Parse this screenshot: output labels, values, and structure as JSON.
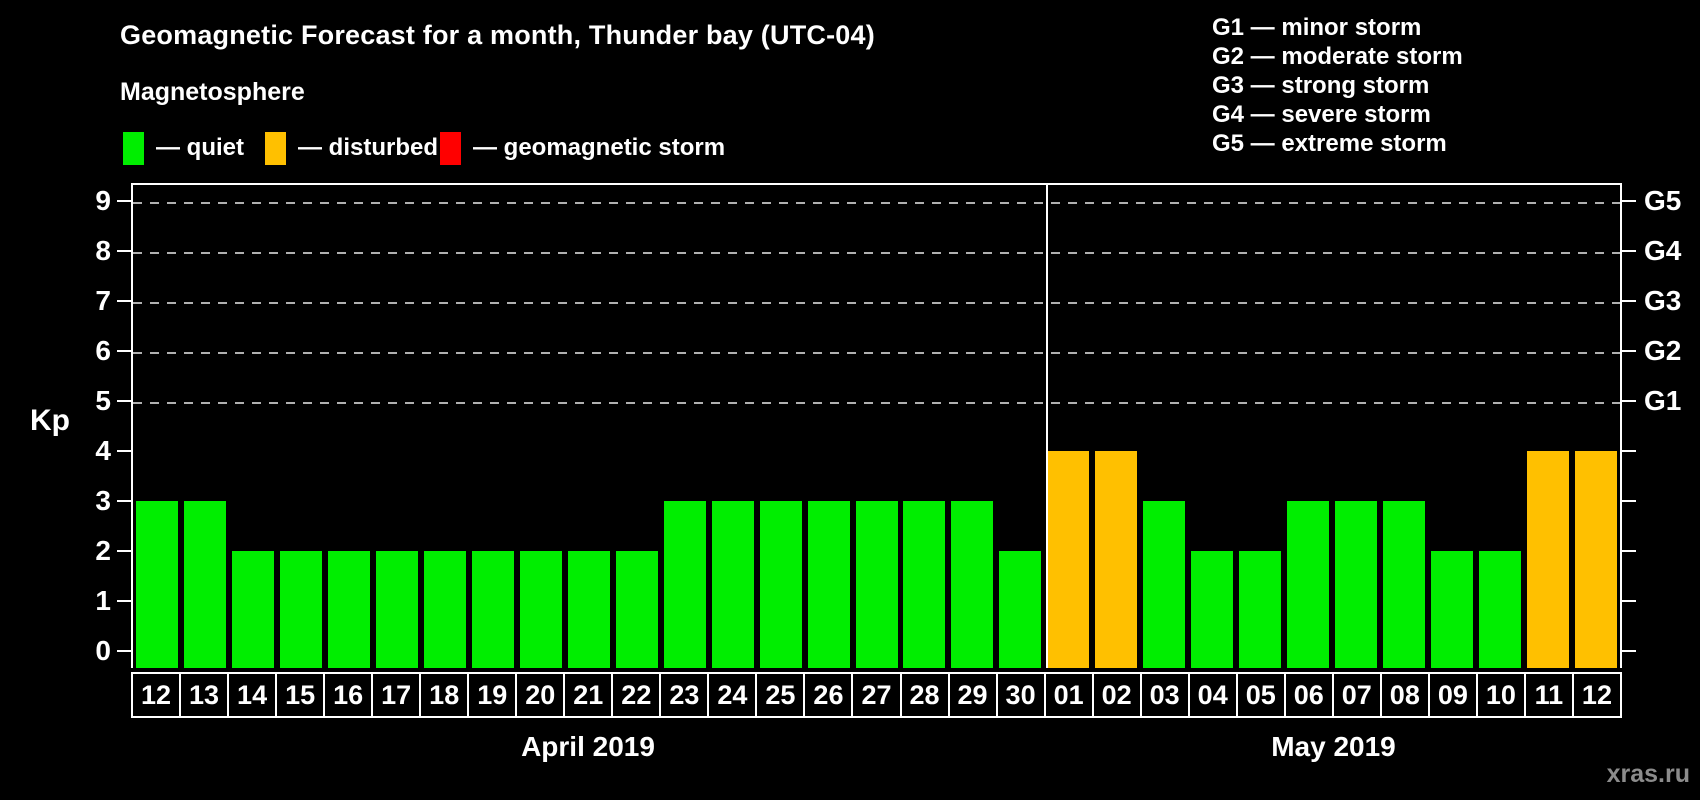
{
  "title": "Geomagnetic Forecast for a month, Thunder bay (UTC-04)",
  "subtitle": "Magnetosphere",
  "watermark": "xras.ru",
  "colors": {
    "quiet": "#00ee00",
    "disturbed": "#ffc000",
    "storm": "#ff0000",
    "axis": "#ffffff",
    "gridline": "#b0b0b0",
    "background": "#000000",
    "watermark": "#8c8c8c"
  },
  "legend": {
    "items": [
      {
        "state": "quiet",
        "label": "— quiet"
      },
      {
        "state": "disturbed",
        "label": "— disturbed"
      },
      {
        "state": "storm",
        "label": "— geomagnetic storm"
      }
    ]
  },
  "g_scale_legend": [
    "G1 — minor storm",
    "G2 — moderate storm",
    "G3 — strong storm",
    "G4 — severe storm",
    "G5 — extreme storm"
  ],
  "chart_data": {
    "type": "bar",
    "title": "Geomagnetic Forecast for a month, Thunder bay (UTC-04)",
    "ylabel": "Kp",
    "ylim": [
      0,
      9
    ],
    "yticks": [
      0,
      1,
      2,
      3,
      4,
      5,
      6,
      7,
      8,
      9
    ],
    "gridline_levels": [
      5,
      6,
      7,
      8,
      9
    ],
    "grid": "dashed horizontal at Kp 5-9 only",
    "legend_position": "top",
    "right_axis": [
      {
        "kp": 9,
        "label": "G5"
      },
      {
        "kp": 8,
        "label": "G4"
      },
      {
        "kp": 7,
        "label": "G3"
      },
      {
        "kp": 6,
        "label": "G2"
      },
      {
        "kp": 5,
        "label": "G1"
      }
    ],
    "months": [
      {
        "label": "April 2019",
        "days": 19
      },
      {
        "label": "May 2019",
        "days": 12
      }
    ],
    "series": [
      {
        "month": "April 2019",
        "day": "12",
        "kp": 3,
        "state": "quiet"
      },
      {
        "month": "April 2019",
        "day": "13",
        "kp": 3,
        "state": "quiet"
      },
      {
        "month": "April 2019",
        "day": "14",
        "kp": 2,
        "state": "quiet"
      },
      {
        "month": "April 2019",
        "day": "15",
        "kp": 2,
        "state": "quiet"
      },
      {
        "month": "April 2019",
        "day": "16",
        "kp": 2,
        "state": "quiet"
      },
      {
        "month": "April 2019",
        "day": "17",
        "kp": 2,
        "state": "quiet"
      },
      {
        "month": "April 2019",
        "day": "18",
        "kp": 2,
        "state": "quiet"
      },
      {
        "month": "April 2019",
        "day": "19",
        "kp": 2,
        "state": "quiet"
      },
      {
        "month": "April 2019",
        "day": "20",
        "kp": 2,
        "state": "quiet"
      },
      {
        "month": "April 2019",
        "day": "21",
        "kp": 2,
        "state": "quiet"
      },
      {
        "month": "April 2019",
        "day": "22",
        "kp": 2,
        "state": "quiet"
      },
      {
        "month": "April 2019",
        "day": "23",
        "kp": 3,
        "state": "quiet"
      },
      {
        "month": "April 2019",
        "day": "24",
        "kp": 3,
        "state": "quiet"
      },
      {
        "month": "April 2019",
        "day": "25",
        "kp": 3,
        "state": "quiet"
      },
      {
        "month": "April 2019",
        "day": "26",
        "kp": 3,
        "state": "quiet"
      },
      {
        "month": "April 2019",
        "day": "27",
        "kp": 3,
        "state": "quiet"
      },
      {
        "month": "April 2019",
        "day": "28",
        "kp": 3,
        "state": "quiet"
      },
      {
        "month": "April 2019",
        "day": "29",
        "kp": 3,
        "state": "quiet"
      },
      {
        "month": "April 2019",
        "day": "30",
        "kp": 2,
        "state": "quiet"
      },
      {
        "month": "May 2019",
        "day": "01",
        "kp": 4,
        "state": "disturbed"
      },
      {
        "month": "May 2019",
        "day": "02",
        "kp": 4,
        "state": "disturbed"
      },
      {
        "month": "May 2019",
        "day": "03",
        "kp": 3,
        "state": "quiet"
      },
      {
        "month": "May 2019",
        "day": "04",
        "kp": 2,
        "state": "quiet"
      },
      {
        "month": "May 2019",
        "day": "05",
        "kp": 2,
        "state": "quiet"
      },
      {
        "month": "May 2019",
        "day": "06",
        "kp": 3,
        "state": "quiet"
      },
      {
        "month": "May 2019",
        "day": "07",
        "kp": 3,
        "state": "quiet"
      },
      {
        "month": "May 2019",
        "day": "08",
        "kp": 3,
        "state": "quiet"
      },
      {
        "month": "May 2019",
        "day": "09",
        "kp": 2,
        "state": "quiet"
      },
      {
        "month": "May 2019",
        "day": "10",
        "kp": 2,
        "state": "quiet"
      },
      {
        "month": "May 2019",
        "day": "11",
        "kp": 4,
        "state": "disturbed"
      },
      {
        "month": "May 2019",
        "day": "12",
        "kp": 4,
        "state": "disturbed"
      }
    ]
  }
}
